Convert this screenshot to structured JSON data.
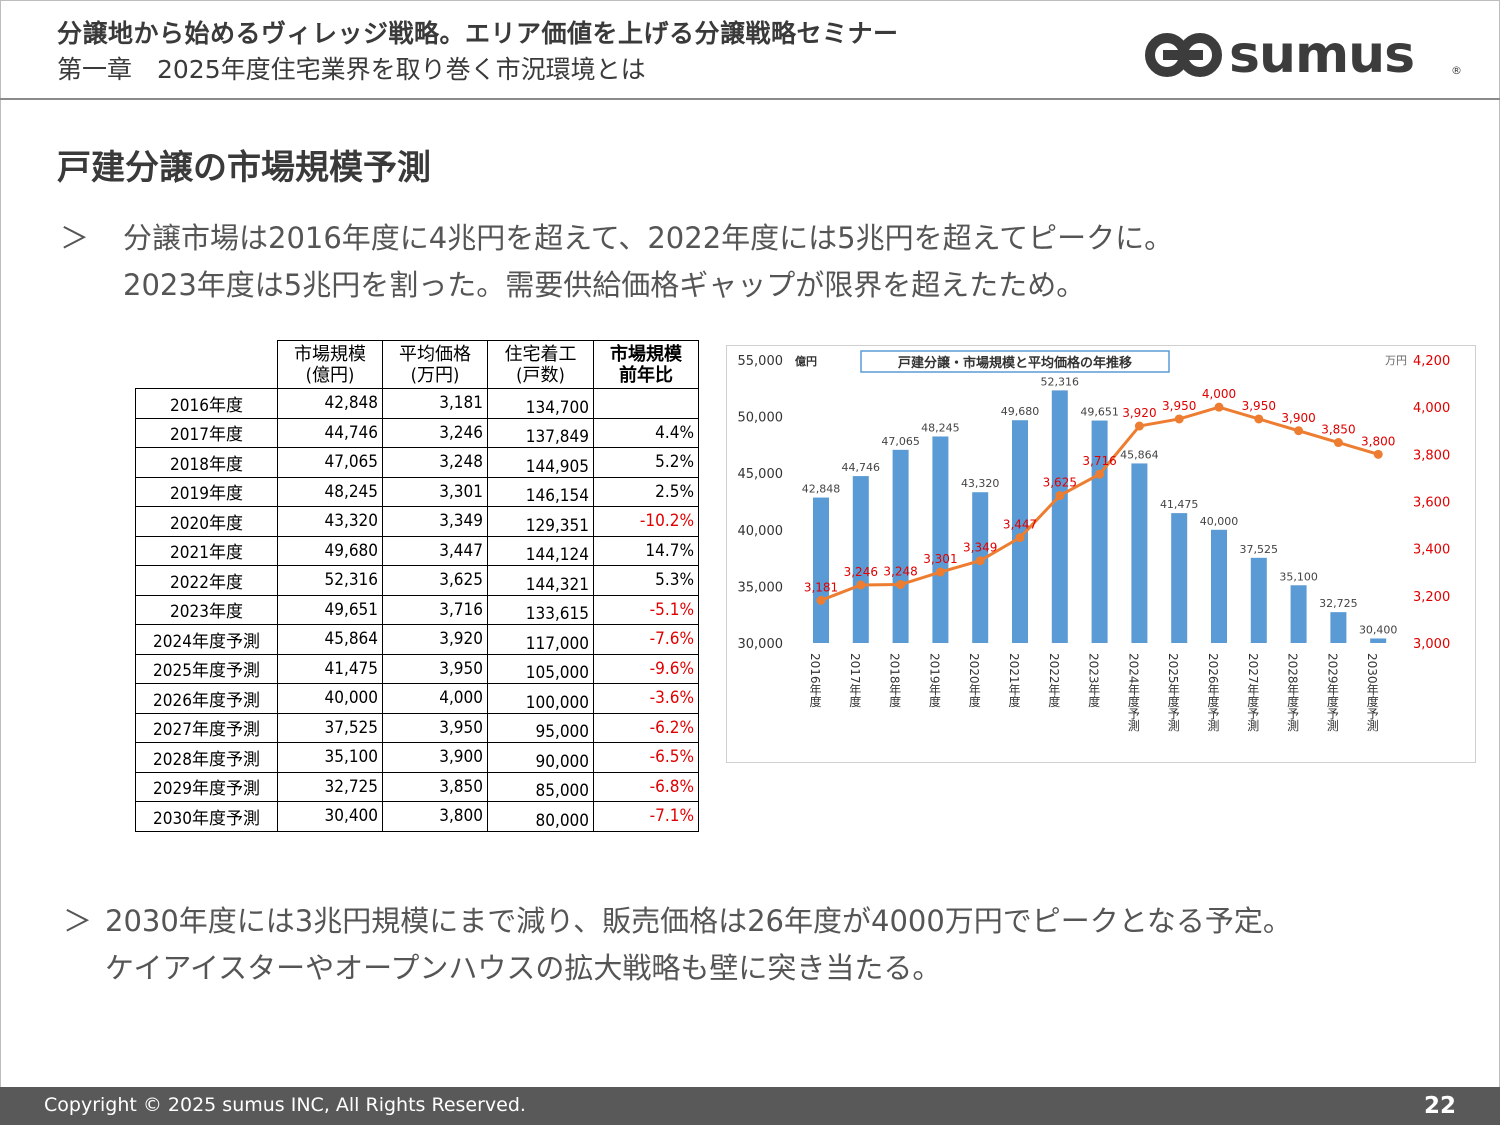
{
  "header": {
    "title": "分譲地から始めるヴィレッジ戦略。エリア価値を上げる分譲戦略セミナー",
    "subtitle": "第一章　2025年度住宅業界を取り巻く市況環境とは",
    "logo_text": "sumus"
  },
  "section_title": "戸建分譲の市場規模予測",
  "bullets_top": {
    "marker": "＞",
    "lines": [
      "分譲市場は2016年度に4兆円を超えて、2022年度には5兆円を超えてピークに。",
      "2023年度は5兆円を割った。需要供給価格ギャップが限界を超えたため。"
    ]
  },
  "bullets_bottom": {
    "marker": "＞",
    "lines": [
      "2030年度には3兆円規模にまで減り、販売価格は26年度が4000万円でピークとなる予定。",
      "ケイアイスターやオープンハウスの拡大戦略も壁に突き当たる。"
    ]
  },
  "table": {
    "headers": [
      "市場規模\n(億円)",
      "平均価格\n(万円)",
      "住宅着工\n(戸数)",
      "市場規模\n前年比"
    ],
    "rows": [
      {
        "year": "2016年度",
        "size": "42,848",
        "price": "3,181",
        "starts": "134,700",
        "yoy": "",
        "neg": false
      },
      {
        "year": "2017年度",
        "size": "44,746",
        "price": "3,246",
        "starts": "137,849",
        "yoy": "4.4%",
        "neg": false
      },
      {
        "year": "2018年度",
        "size": "47,065",
        "price": "3,248",
        "starts": "144,905",
        "yoy": "5.2%",
        "neg": false
      },
      {
        "year": "2019年度",
        "size": "48,245",
        "price": "3,301",
        "starts": "146,154",
        "yoy": "2.5%",
        "neg": false
      },
      {
        "year": "2020年度",
        "size": "43,320",
        "price": "3,349",
        "starts": "129,351",
        "yoy": "-10.2%",
        "neg": true
      },
      {
        "year": "2021年度",
        "size": "49,680",
        "price": "3,447",
        "starts": "144,124",
        "yoy": "14.7%",
        "neg": false
      },
      {
        "year": "2022年度",
        "size": "52,316",
        "price": "3,625",
        "starts": "144,321",
        "yoy": "5.3%",
        "neg": false
      },
      {
        "year": "2023年度",
        "size": "49,651",
        "price": "3,716",
        "starts": "133,615",
        "yoy": "-5.1%",
        "neg": true
      },
      {
        "year": "2024年度予測",
        "size": "45,864",
        "price": "3,920",
        "starts": "117,000",
        "yoy": "-7.6%",
        "neg": true
      },
      {
        "year": "2025年度予測",
        "size": "41,475",
        "price": "3,950",
        "starts": "105,000",
        "yoy": "-9.6%",
        "neg": true
      },
      {
        "year": "2026年度予測",
        "size": "40,000",
        "price": "4,000",
        "starts": "100,000",
        "yoy": "-3.6%",
        "neg": true
      },
      {
        "year": "2027年度予測",
        "size": "37,525",
        "price": "3,950",
        "starts": "95,000",
        "yoy": "-6.2%",
        "neg": true
      },
      {
        "year": "2028年度予測",
        "size": "35,100",
        "price": "3,900",
        "starts": "90,000",
        "yoy": "-6.5%",
        "neg": true
      },
      {
        "year": "2029年度予測",
        "size": "32,725",
        "price": "3,850",
        "starts": "85,000",
        "yoy": "-6.8%",
        "neg": true
      },
      {
        "year": "2030年度予測",
        "size": "30,400",
        "price": "3,800",
        "starts": "80,000",
        "yoy": "-7.1%",
        "neg": true
      }
    ]
  },
  "chart_data": {
    "type": "bar+line",
    "title": "戸建分譲・市場規模と平均価格の年推移",
    "y_left_unit": "億円",
    "y_right_unit": "万円",
    "y_left_range": [
      30000,
      55000
    ],
    "y_left_ticks": [
      "30,000",
      "35,000",
      "40,000",
      "45,000",
      "50,000",
      "55,000"
    ],
    "y_right_range": [
      3000,
      4200
    ],
    "y_right_ticks": [
      "3,000",
      "3,200",
      "3,400",
      "3,600",
      "3,800",
      "4,000",
      "4,200"
    ],
    "categories": [
      "2016年度",
      "2017年度",
      "2018年度",
      "2019年度",
      "2020年度",
      "2021年度",
      "2022年度",
      "2023年度",
      "2024年度予測",
      "2025年度予測",
      "2026年度予測",
      "2027年度予測",
      "2028年度予測",
      "2029年度予測",
      "2030年度予測"
    ],
    "series": [
      {
        "kind": "bar",
        "axis": "left",
        "color": "#5b9bd5",
        "values": [
          42848,
          44746,
          47065,
          48245,
          43320,
          49680,
          52316,
          49651,
          45864,
          41475,
          40000,
          37525,
          35100,
          32725,
          30400
        ],
        "labels": [
          "42,848",
          "44,746",
          "47,065",
          "48,245",
          "43,320",
          "49,680",
          "52,316",
          "49,651",
          "45,864",
          "41,475",
          "40,000",
          "37,525",
          "35,100",
          "32,725",
          "30,400"
        ]
      },
      {
        "kind": "line",
        "axis": "right",
        "color": "#ed7d31",
        "label_color": "#e00000",
        "values": [
          3181,
          3246,
          3248,
          3301,
          3349,
          3447,
          3625,
          3716,
          3920,
          3950,
          4000,
          3950,
          3900,
          3850,
          3800
        ],
        "labels": [
          "3,181",
          "3,246",
          "3,248",
          "3,301",
          "3,349",
          "3,447",
          "3,625",
          "3,716",
          "3,920",
          "3,950",
          "4,000",
          "3,950",
          "3,900",
          "3,850",
          "3,800"
        ]
      }
    ],
    "grid": false
  },
  "footer": {
    "copyright": "Copyright © 2025 sumus INC, All Rights Reserved.",
    "page": "22"
  }
}
